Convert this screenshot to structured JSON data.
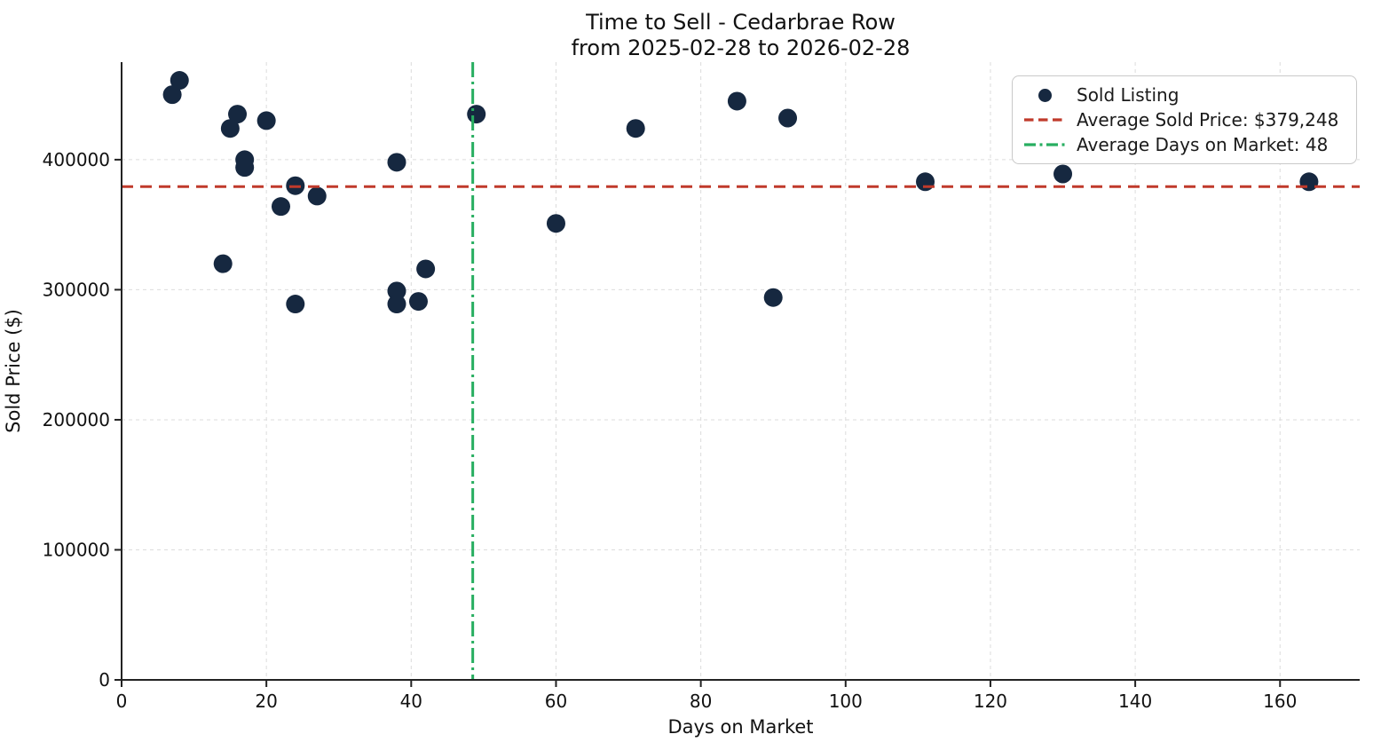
{
  "chart_data": {
    "type": "scatter",
    "title": "Time to Sell - Cedarbrae Row",
    "subtitle": "from 2025-02-28 to 2026-02-28",
    "xlabel": "Days on Market",
    "ylabel": "Sold Price ($)",
    "xlim": [
      0,
      171
    ],
    "ylim": [
      0,
      475000
    ],
    "xticks": [
      0,
      20,
      40,
      60,
      80,
      100,
      120,
      140,
      160
    ],
    "yticks": [
      0,
      100000,
      200000,
      300000,
      400000
    ],
    "grid": true,
    "legend_position": "upper right",
    "colors": {
      "point": "#162840",
      "avg_price_line": "#c03a2b",
      "avg_days_line": "#27ae60",
      "gridline": "#dcdcdc",
      "spine": "#222222",
      "text": "#111111"
    },
    "series": [
      {
        "name": "Sold Listing",
        "type": "scatter",
        "points": [
          [
            7,
            450000
          ],
          [
            8,
            461000
          ],
          [
            14,
            320000
          ],
          [
            15,
            424000
          ],
          [
            16,
            435000
          ],
          [
            17,
            400000
          ],
          [
            17,
            394000
          ],
          [
            20,
            430000
          ],
          [
            22,
            364000
          ],
          [
            24,
            380000
          ],
          [
            24,
            289000
          ],
          [
            27,
            372000
          ],
          [
            38,
            398000
          ],
          [
            38,
            299000
          ],
          [
            38,
            289000
          ],
          [
            41,
            291000
          ],
          [
            42,
            316000
          ],
          [
            49,
            435000
          ],
          [
            60,
            351000
          ],
          [
            71,
            424000
          ],
          [
            85,
            445000
          ],
          [
            90,
            294000
          ],
          [
            92,
            432000
          ],
          [
            111,
            383000
          ],
          [
            130,
            389000
          ],
          [
            164,
            383000
          ]
        ]
      }
    ],
    "reference_lines": [
      {
        "name": "average-sold-price",
        "orientation": "horizontal",
        "value": 379248,
        "style": "dashed"
      },
      {
        "name": "average-days-on-market",
        "orientation": "vertical",
        "value": 48.5,
        "style": "dashdot"
      }
    ],
    "legend": {
      "items": [
        {
          "label": "Sold Listing",
          "marker": "dot"
        },
        {
          "label": "Average Sold Price: $379,248",
          "marker": "dashed-line"
        },
        {
          "label": "Average Days on Market: 48",
          "marker": "dashdot-line"
        }
      ]
    }
  }
}
